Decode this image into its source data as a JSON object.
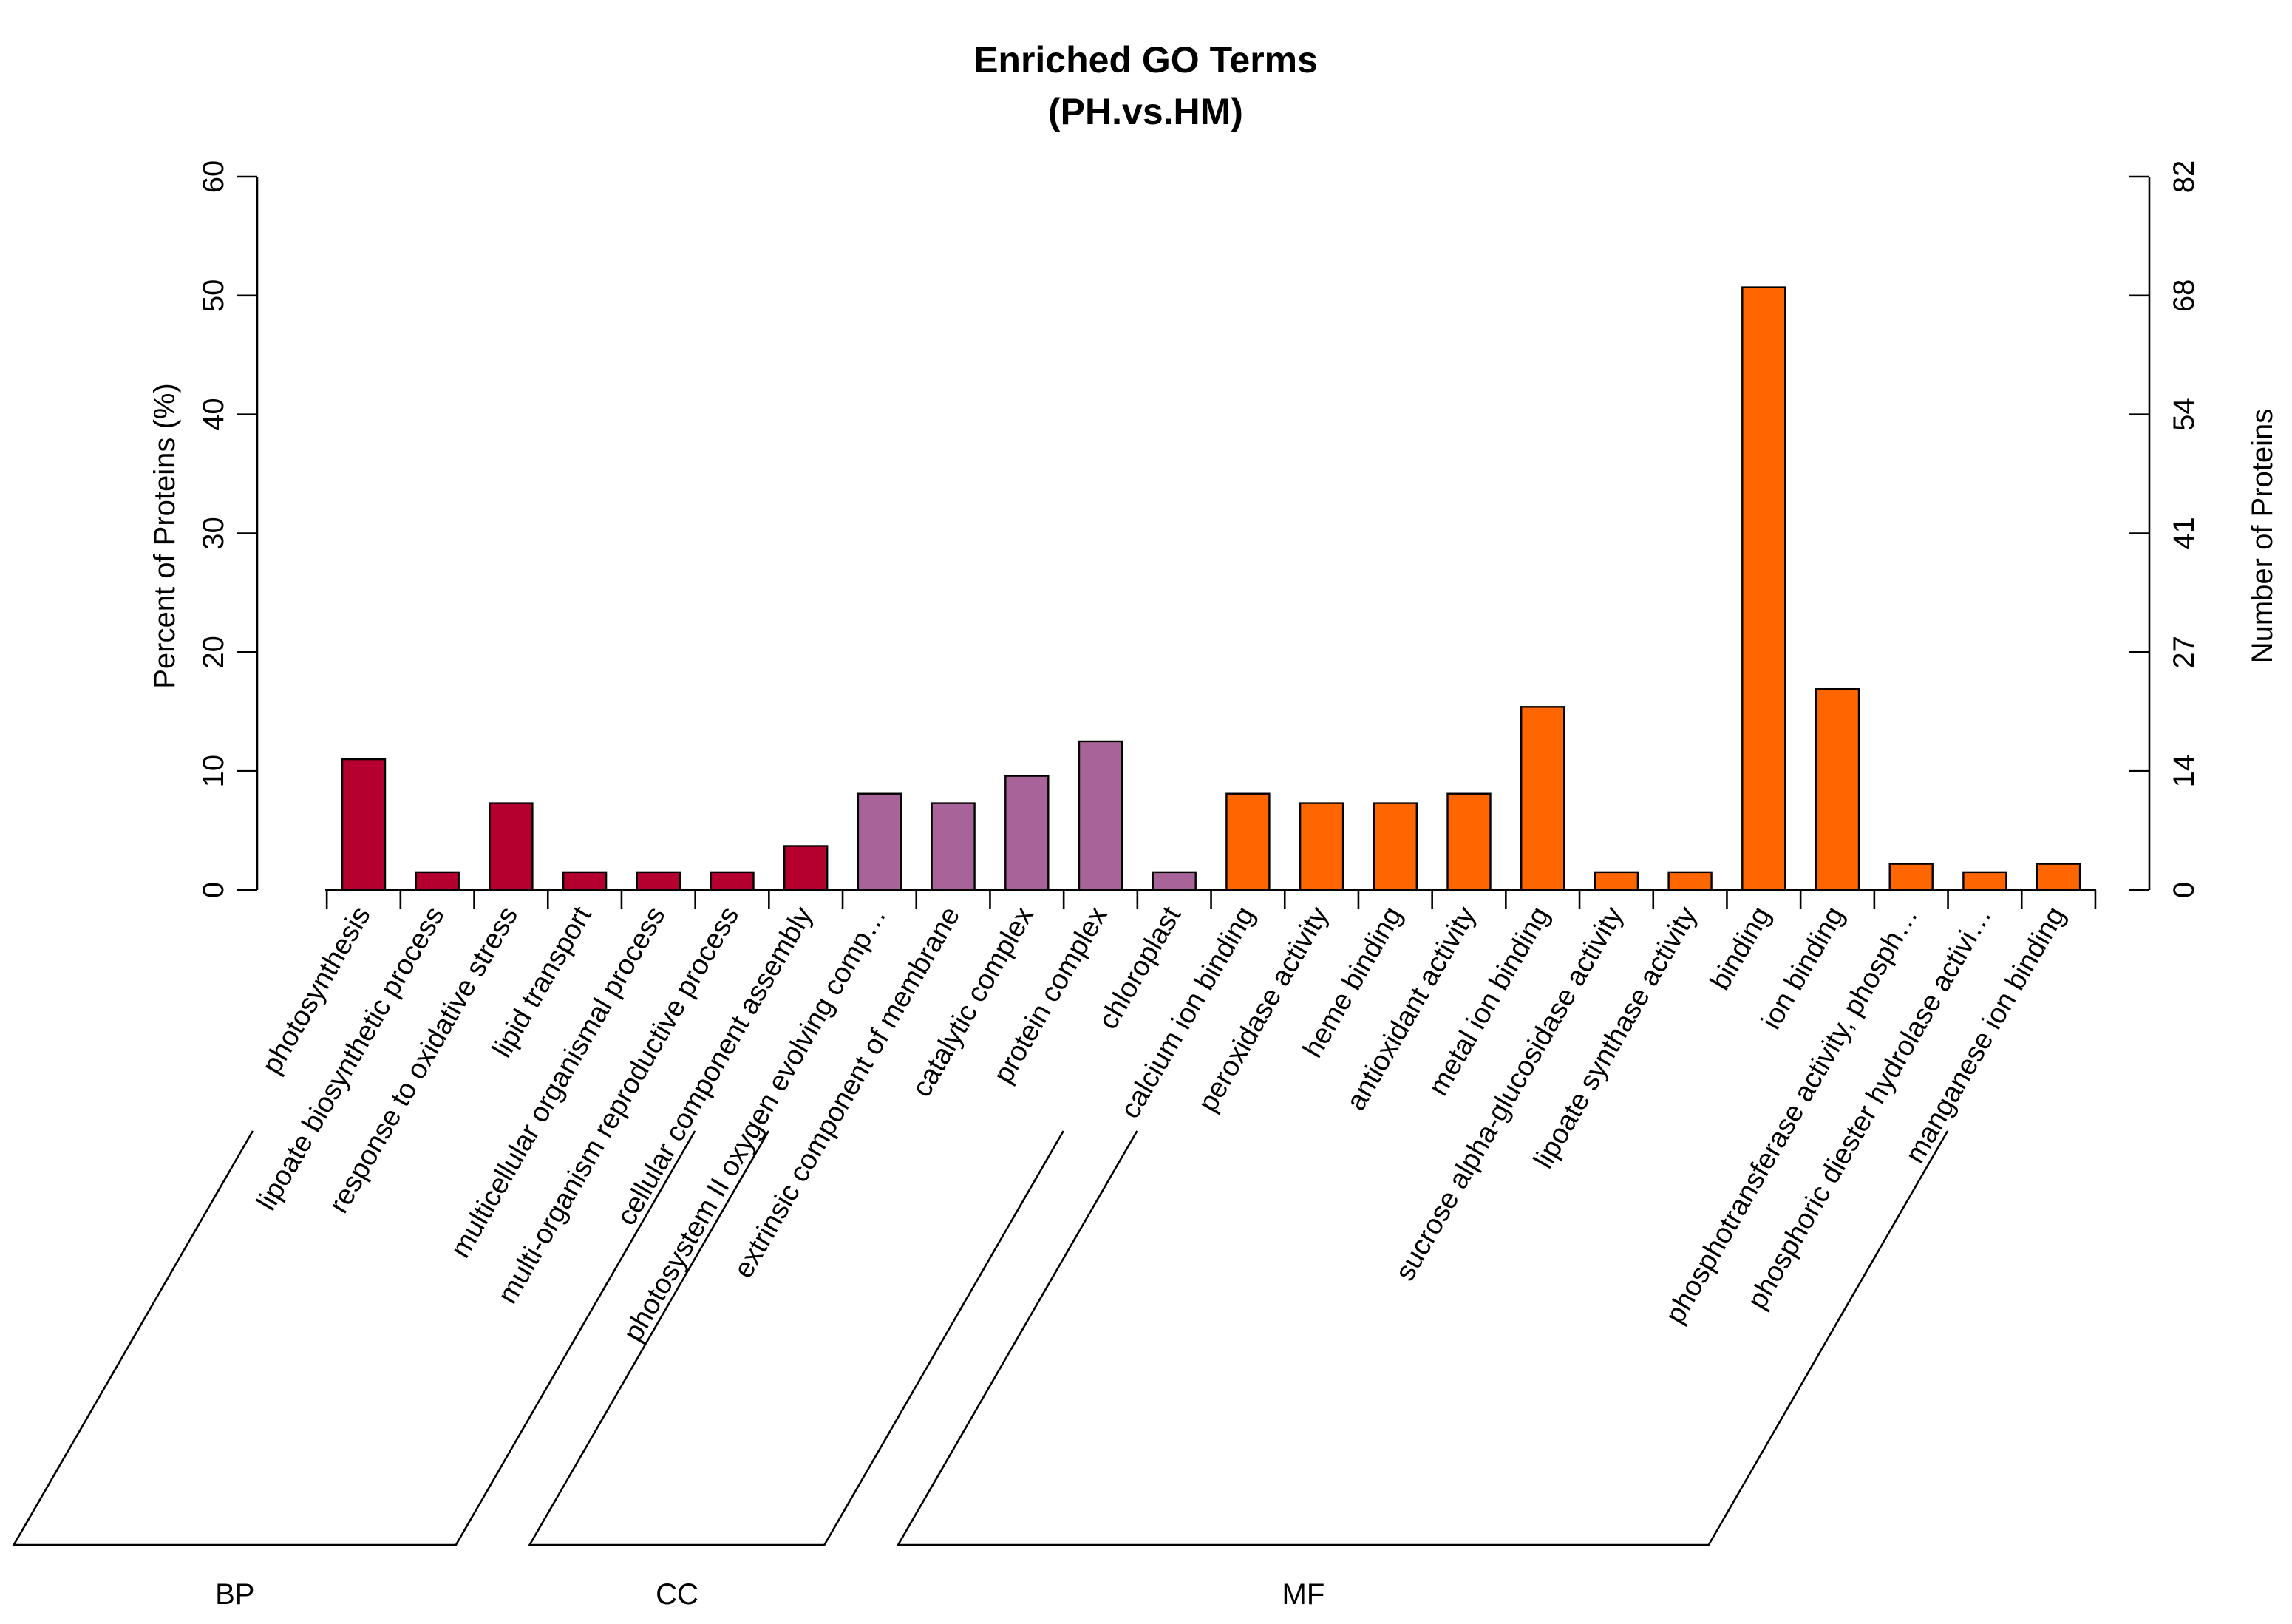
{
  "chart_data": {
    "type": "bar",
    "title": "Enriched GO Terms",
    "subtitle": "(PH.vs.HM)",
    "ylabel": "Percent of Proteins (%)",
    "y2label": "Number of Proteins",
    "ylim": [
      0,
      60
    ],
    "yticks": [
      "0",
      "10",
      "20",
      "30",
      "40",
      "50",
      "60"
    ],
    "y2ticks": [
      "0",
      "14",
      "27",
      "41",
      "54",
      "68",
      "82"
    ],
    "categories": [
      "photosynthesis",
      "lipoate biosynthetic process",
      "response to oxidative stress",
      "lipid transport",
      "multicellular organismal process",
      "multi-organism reproductive process",
      "cellular component assembly",
      "photosystem II oxygen evolving comp…",
      "extrinsic component of membrane",
      "catalytic complex",
      "protein complex",
      "chloroplast",
      "calcium ion binding",
      "peroxidase activity",
      "heme binding",
      "antioxidant activity",
      "metal ion binding",
      "sucrose alpha-glucosidase activity",
      "lipoate synthase activity",
      "binding",
      "ion binding",
      "phosphotransferase activity, phosph…",
      "phosphoric diester hydrolase activi…",
      "manganese ion binding"
    ],
    "values": [
      11.0,
      1.5,
      7.3,
      1.5,
      1.5,
      1.5,
      3.7,
      8.1,
      7.3,
      9.6,
      12.5,
      1.5,
      8.1,
      7.3,
      7.3,
      8.1,
      15.4,
      1.5,
      1.5,
      50.7,
      16.9,
      2.2,
      1.5,
      2.2
    ],
    "groups": [
      {
        "name": "BP",
        "start": 0,
        "end": 6,
        "color": "#b5002f"
      },
      {
        "name": "CC",
        "start": 7,
        "end": 11,
        "color": "#a86499"
      },
      {
        "name": "MF",
        "start": 12,
        "end": 23,
        "color": "#ff6600"
      }
    ]
  }
}
